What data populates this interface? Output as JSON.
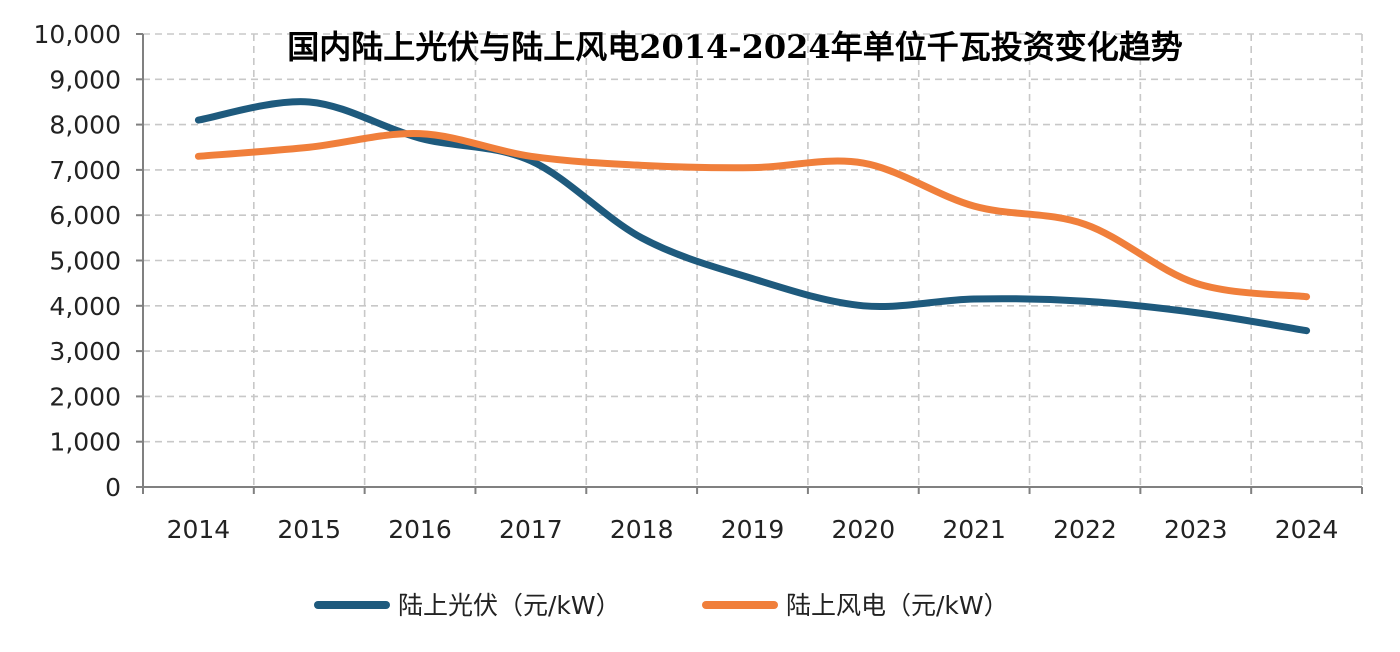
{
  "chart_data": {
    "type": "line",
    "title": "国内陆上光伏与陆上风电2014-2024年单位千瓦投资变化趋势",
    "xlabel": "",
    "ylabel": "",
    "categories": [
      "2014",
      "2015",
      "2016",
      "2017",
      "2018",
      "2019",
      "2020",
      "2021",
      "2022",
      "2023",
      "2024"
    ],
    "yticks": [
      "0",
      "1,000",
      "2,000",
      "3,000",
      "4,000",
      "5,000",
      "6,000",
      "7,000",
      "8,000",
      "9,000",
      "10,000"
    ],
    "ylim": [
      0,
      10000
    ],
    "grid": true,
    "legend_position": "bottom",
    "series": [
      {
        "name": "陆上光伏（元/kW）",
        "color": "#1e5a7d",
        "values": [
          8100,
          8500,
          7700,
          7200,
          5500,
          4600,
          4000,
          4150,
          4100,
          3850,
          3450
        ]
      },
      {
        "name": "陆上风电（元/kW）",
        "color": "#f07f3b",
        "values": [
          7300,
          7500,
          7800,
          7300,
          7100,
          7050,
          7150,
          6200,
          5800,
          4500,
          4200
        ]
      }
    ]
  }
}
